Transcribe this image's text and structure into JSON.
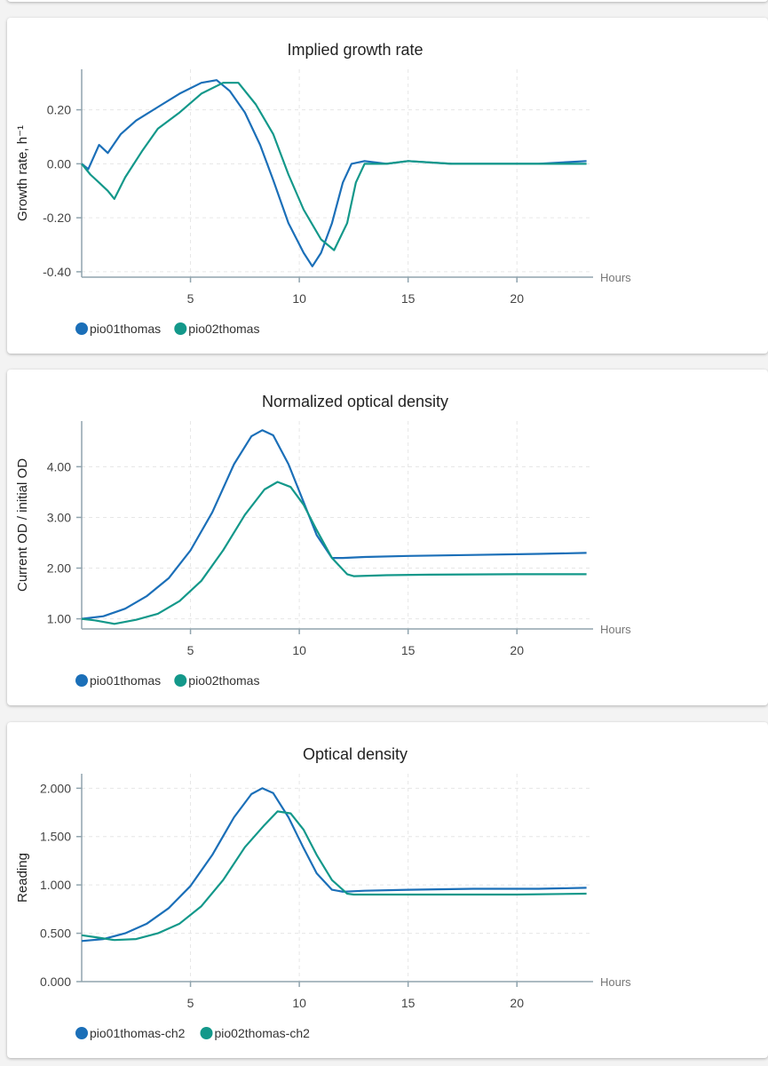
{
  "colors": {
    "series_1": "#1b6fb8",
    "series_2": "#13988a",
    "axis": "#90a4ae",
    "grid": "#e6e6e6"
  },
  "chart_data": [
    {
      "type": "line",
      "title": "Implied growth rate",
      "ylabel": "Growth rate, h⁻¹",
      "x_unit": "Hours",
      "xlim": [
        0,
        23.5
      ],
      "ylim": [
        -0.42,
        0.35
      ],
      "y_ticks": [
        -0.4,
        -0.2,
        0.0,
        0.2
      ],
      "y_tick_labels": [
        "-0.40",
        "-0.20",
        "0.00",
        "0.20"
      ],
      "x_ticks": [
        5,
        10,
        15,
        20
      ],
      "x_tick_labels": [
        "5",
        "10",
        "15",
        "20"
      ],
      "grid": true,
      "legend": "bottom-left",
      "series": [
        {
          "name": "pio01thomas",
          "x": [
            0,
            0.3,
            0.8,
            1.2,
            1.8,
            2.5,
            3.5,
            4.5,
            5.5,
            6.2,
            6.8,
            7.5,
            8.2,
            8.8,
            9.5,
            10.2,
            10.6,
            11.0,
            11.5,
            12.0,
            12.4,
            13,
            14,
            15,
            17,
            19,
            21,
            23.2
          ],
          "y": [
            0.0,
            -0.02,
            0.07,
            0.04,
            0.11,
            0.16,
            0.21,
            0.26,
            0.3,
            0.31,
            0.27,
            0.19,
            0.07,
            -0.06,
            -0.22,
            -0.33,
            -0.38,
            -0.33,
            -0.22,
            -0.07,
            0.0,
            0.01,
            0.0,
            0.01,
            0.0,
            0.0,
            0.0,
            0.01
          ]
        },
        {
          "name": "pio02thomas",
          "x": [
            0,
            0.4,
            0.8,
            1.2,
            1.5,
            2.0,
            2.8,
            3.5,
            4.5,
            5.5,
            6.5,
            7.2,
            8.0,
            8.8,
            9.5,
            10.2,
            11.0,
            11.6,
            12.2,
            12.6,
            13,
            14,
            15,
            17,
            19,
            21,
            23.2
          ],
          "y": [
            0.0,
            -0.04,
            -0.07,
            -0.1,
            -0.13,
            -0.05,
            0.05,
            0.13,
            0.19,
            0.26,
            0.3,
            0.3,
            0.22,
            0.11,
            -0.04,
            -0.17,
            -0.28,
            -0.32,
            -0.22,
            -0.07,
            0.0,
            0.0,
            0.01,
            0.0,
            0.0,
            0.0,
            0.0
          ]
        }
      ]
    },
    {
      "type": "line",
      "title": "Normalized optical density",
      "ylabel": "Current OD / initial OD",
      "x_unit": "Hours",
      "xlim": [
        0,
        23.5
      ],
      "ylim": [
        0.8,
        4.9
      ],
      "y_ticks": [
        1,
        2,
        3,
        4
      ],
      "y_tick_labels": [
        "1.00",
        "2.00",
        "3.00",
        "4.00"
      ],
      "x_ticks": [
        5,
        10,
        15,
        20
      ],
      "x_tick_labels": [
        "5",
        "10",
        "15",
        "20"
      ],
      "grid": true,
      "legend": "bottom-left",
      "series": [
        {
          "name": "pio01thomas",
          "x": [
            0,
            1,
            2,
            3,
            4,
            5,
            6,
            7,
            7.8,
            8.3,
            8.8,
            9.5,
            10.2,
            10.8,
            11.5,
            12,
            13,
            15,
            18,
            21,
            23.2
          ],
          "y": [
            1.0,
            1.05,
            1.2,
            1.45,
            1.8,
            2.35,
            3.1,
            4.05,
            4.6,
            4.72,
            4.62,
            4.05,
            3.3,
            2.65,
            2.2,
            2.2,
            2.22,
            2.24,
            2.26,
            2.28,
            2.3
          ]
        },
        {
          "name": "pio02thomas",
          "x": [
            0,
            0.6,
            1.5,
            2.5,
            3.5,
            4.5,
            5.5,
            6.5,
            7.5,
            8.4,
            9.0,
            9.6,
            10.2,
            10.8,
            11.5,
            12.2,
            12.5,
            14,
            16,
            20,
            23.2
          ],
          "y": [
            1.0,
            0.97,
            0.9,
            0.98,
            1.1,
            1.35,
            1.75,
            2.35,
            3.05,
            3.55,
            3.7,
            3.6,
            3.25,
            2.75,
            2.2,
            1.88,
            1.84,
            1.86,
            1.87,
            1.88,
            1.88
          ]
        }
      ]
    },
    {
      "type": "line",
      "title": "Optical density",
      "ylabel": "Reading",
      "x_unit": "Hours",
      "xlim": [
        0,
        23.5
      ],
      "ylim": [
        0,
        2.15
      ],
      "y_ticks": [
        0,
        0.5,
        1.0,
        1.5,
        2.0
      ],
      "y_tick_labels": [
        "0.000",
        "0.500",
        "1.000",
        "1.500",
        "2.000"
      ],
      "x_ticks": [
        5,
        10,
        15,
        20
      ],
      "x_tick_labels": [
        "5",
        "10",
        "15",
        "20"
      ],
      "grid": true,
      "legend": "bottom-left",
      "series": [
        {
          "name": "pio01thomas-ch2",
          "x": [
            0,
            1,
            2,
            3,
            4,
            5,
            6,
            7,
            7.8,
            8.3,
            8.8,
            9.5,
            10.2,
            10.8,
            11.5,
            12,
            13,
            15,
            18,
            21,
            23.2
          ],
          "y": [
            0.42,
            0.44,
            0.5,
            0.6,
            0.76,
            0.99,
            1.31,
            1.7,
            1.94,
            2.0,
            1.95,
            1.7,
            1.38,
            1.12,
            0.95,
            0.93,
            0.94,
            0.95,
            0.96,
            0.96,
            0.97
          ]
        },
        {
          "name": "pio02thomas-ch2",
          "x": [
            0,
            0.6,
            1.5,
            2.5,
            3.5,
            4.5,
            5.5,
            6.5,
            7.5,
            8.4,
            9.0,
            9.6,
            10.2,
            10.8,
            11.5,
            12.2,
            12.5,
            14,
            16,
            20,
            23.2
          ],
          "y": [
            0.48,
            0.46,
            0.43,
            0.44,
            0.5,
            0.6,
            0.78,
            1.05,
            1.39,
            1.62,
            1.76,
            1.74,
            1.57,
            1.31,
            1.05,
            0.91,
            0.9,
            0.9,
            0.9,
            0.9,
            0.91
          ]
        }
      ]
    }
  ]
}
